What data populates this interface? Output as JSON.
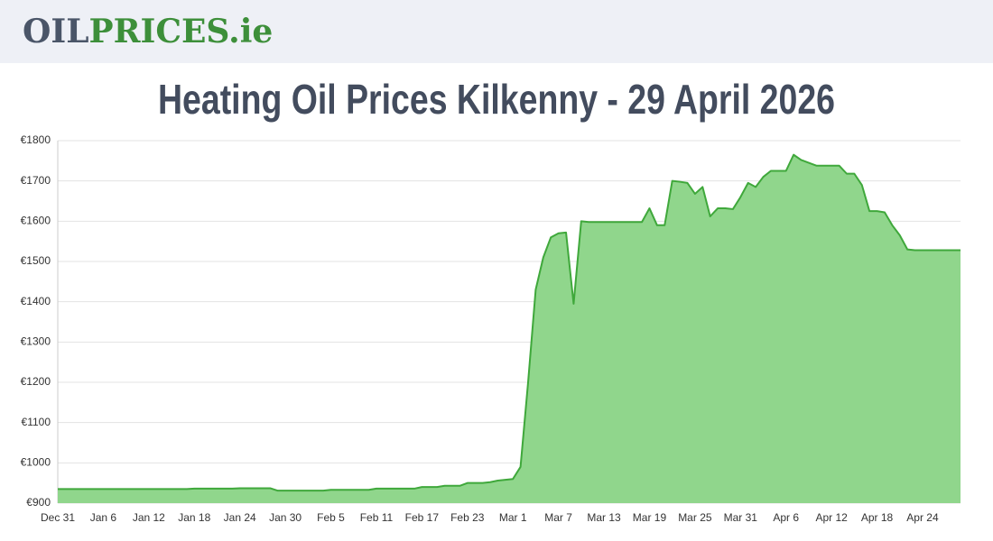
{
  "header": {
    "logo": [
      "OIL",
      "PRICES",
      ".ie"
    ]
  },
  "chart_data": {
    "type": "area",
    "title": "Heating Oil Prices Kilkenny - 29 April 2026",
    "categories": [
      "Dec 31",
      null,
      null,
      null,
      null,
      null,
      "Jan 6",
      null,
      null,
      null,
      null,
      null,
      "Jan 12",
      null,
      null,
      null,
      null,
      null,
      "Jan 18",
      null,
      null,
      null,
      null,
      null,
      "Jan 24",
      null,
      null,
      null,
      null,
      null,
      "Jan 30",
      null,
      null,
      null,
      null,
      null,
      "Feb 5",
      null,
      null,
      null,
      null,
      null,
      "Feb 11",
      null,
      null,
      null,
      null,
      null,
      "Feb 17",
      null,
      null,
      null,
      null,
      null,
      "Feb 23",
      null,
      null,
      null,
      null,
      null,
      "Mar 1",
      null,
      null,
      null,
      null,
      null,
      "Mar 7",
      null,
      null,
      null,
      null,
      null,
      "Mar 13",
      null,
      null,
      null,
      null,
      null,
      "Mar 19",
      null,
      null,
      null,
      null,
      null,
      "Mar 25",
      null,
      null,
      null,
      null,
      null,
      "Mar 31",
      null,
      null,
      null,
      null,
      null,
      "Apr 6",
      null,
      null,
      null,
      null,
      null,
      "Apr 12",
      null,
      null,
      null,
      null,
      null,
      "Apr 18",
      null,
      null,
      null,
      null,
      null,
      "Apr 24",
      null,
      null,
      null,
      null,
      null
    ],
    "values": [
      935,
      935,
      935,
      935,
      935,
      935,
      935,
      935,
      935,
      935,
      935,
      935,
      935,
      935,
      935,
      935,
      935,
      935,
      936,
      936,
      936,
      936,
      936,
      936,
      937,
      937,
      937,
      937,
      937,
      931,
      931,
      931,
      931,
      931,
      931,
      931,
      933,
      933,
      933,
      933,
      933,
      933,
      936,
      936,
      936,
      936,
      936,
      936,
      940,
      940,
      940,
      943,
      943,
      943,
      950,
      950,
      950,
      952,
      956,
      958,
      960,
      990,
      1200,
      1430,
      1510,
      1560,
      1570,
      1572,
      1395,
      1600,
      1598,
      1598,
      1598,
      1598,
      1598,
      1598,
      1598,
      1598,
      1632,
      1590,
      1590,
      1700,
      1698,
      1695,
      1668,
      1685,
      1612,
      1632,
      1632,
      1630,
      1660,
      1695,
      1685,
      1710,
      1725,
      1725,
      1725,
      1765,
      1752,
      1745,
      1738,
      1738,
      1738,
      1738,
      1718,
      1718,
      1690,
      1625,
      1625,
      1622,
      1590,
      1565,
      1530,
      1528,
      1528,
      1528,
      1528,
      1528,
      1528,
      1528
    ],
    "color": "#3fa83b",
    "fill": "#90d68c",
    "ylim": [
      900,
      1800
    ],
    "yticks": [
      {
        "value": 900,
        "label": "€900"
      },
      {
        "value": 1000,
        "label": "€1000"
      },
      {
        "value": 1100,
        "label": "€1100"
      },
      {
        "value": 1200,
        "label": "€1200"
      },
      {
        "value": 1300,
        "label": "€1300"
      },
      {
        "value": 1400,
        "label": "€1400"
      },
      {
        "value": 1500,
        "label": "€1500"
      },
      {
        "value": 1600,
        "label": "€1600"
      },
      {
        "value": 1700,
        "label": "€1700"
      },
      {
        "value": 1800,
        "label": "€1800"
      }
    ],
    "grid": true
  }
}
